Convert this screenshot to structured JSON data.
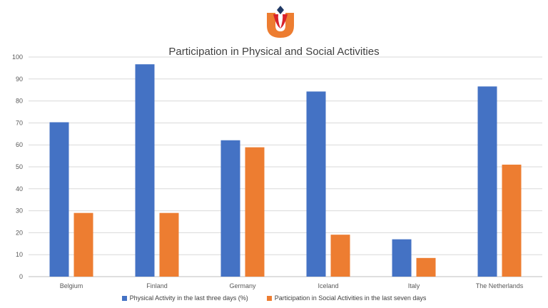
{
  "colors": {
    "logo_orange": "#ED7D31",
    "logo_red": "#D9222A",
    "logo_navy": "#1F3864"
  },
  "chart_data": {
    "type": "bar",
    "title": "Participation in Physical and Social Activities",
    "xlabel": "",
    "ylabel": "",
    "categories": [
      "Belgium",
      "Finland",
      "Germany",
      "Iceland",
      "Italy",
      "The Netherlands"
    ],
    "series": [
      {
        "name": "Physical Activity in the last three days (%)",
        "color": "#4472C4",
        "values": [
          70.3,
          96.7,
          62.1,
          84.3,
          17.0,
          86.6
        ]
      },
      {
        "name": "Participation in Social Activities in the last seven days",
        "color": "#ED7D31",
        "values": [
          29.0,
          29.0,
          58.9,
          19.1,
          8.5,
          51.0
        ]
      }
    ],
    "ylim": [
      0,
      100
    ],
    "yticks": [
      0,
      10,
      20,
      30,
      40,
      50,
      60,
      70,
      80,
      90,
      100
    ],
    "grid": true,
    "legend_position": "bottom"
  }
}
